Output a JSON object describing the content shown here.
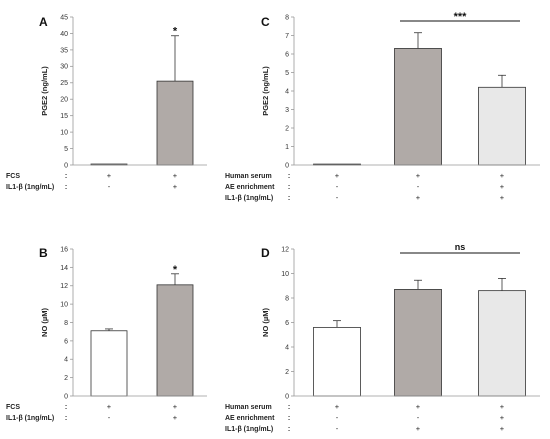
{
  "chart_data": [
    {
      "panel": "A",
      "type": "bar",
      "ylabel": "PGE2 (ng/mL)",
      "ylim": [
        0,
        45
      ],
      "yticks": [
        0,
        5,
        10,
        15,
        20,
        25,
        30,
        35,
        40,
        45
      ],
      "values": [
        0.3,
        25.5
      ],
      "errors": [
        0,
        13.8
      ],
      "fills": [
        "#ffffff",
        "#b0aaa7"
      ],
      "conditions": [
        {
          "label": "FCS",
          "sep": ":",
          "signs": [
            "+",
            "+"
          ]
        },
        {
          "label": "IL1-β (1ng/mL)",
          "sep": ":",
          "signs": [
            "-",
            "+"
          ]
        }
      ],
      "annotations": [
        {
          "bar": 1,
          "text": "*"
        }
      ]
    },
    {
      "panel": "B",
      "type": "bar",
      "ylabel": "NO (µM)",
      "ylim": [
        0,
        16
      ],
      "yticks": [
        0,
        2,
        4,
        6,
        8,
        10,
        12,
        14,
        16
      ],
      "values": [
        7.1,
        12.1
      ],
      "errors": [
        0.2,
        1.2
      ],
      "fills": [
        "#ffffff",
        "#b0aaa7"
      ],
      "conditions": [
        {
          "label": "FCS",
          "sep": ":",
          "signs": [
            "+",
            "+"
          ]
        },
        {
          "label": "IL1-β (1ng/mL)",
          "sep": ":",
          "signs": [
            "-",
            "+"
          ]
        }
      ],
      "annotations": [
        {
          "bar": 1,
          "text": "*"
        }
      ]
    },
    {
      "panel": "C",
      "type": "bar",
      "ylabel": "PGE2 (ng/mL)",
      "ylim": [
        0,
        8
      ],
      "yticks": [
        0,
        1,
        2,
        3,
        4,
        5,
        6,
        7,
        8
      ],
      "values": [
        0.05,
        6.3,
        4.2
      ],
      "errors": [
        0,
        0.85,
        0.65
      ],
      "fills": [
        "#ffffff",
        "#b0aaa7",
        "#e8e8e8"
      ],
      "conditions": [
        {
          "label": "Human serum",
          "sep": ":",
          "signs": [
            "+",
            "+",
            "+"
          ]
        },
        {
          "label": "AE enrichment",
          "sep": ":",
          "signs": [
            "-",
            "-",
            "+"
          ]
        },
        {
          "label": "IL1-β (1ng/mL)",
          "sep": ":",
          "signs": [
            "-",
            "+",
            "+"
          ]
        }
      ],
      "brackets": [
        {
          "from": 1,
          "to": 2,
          "text": "***"
        }
      ]
    },
    {
      "panel": "D",
      "type": "bar",
      "ylabel": "NO (µM)",
      "ylim": [
        0,
        12
      ],
      "yticks": [
        0,
        2,
        4,
        6,
        8,
        10,
        12
      ],
      "values": [
        5.6,
        8.7,
        8.6
      ],
      "errors": [
        0.55,
        0.75,
        1.0
      ],
      "fills": [
        "#ffffff",
        "#b0aaa7",
        "#e8e8e8"
      ],
      "conditions": [
        {
          "label": "Human serum",
          "sep": ":",
          "signs": [
            "+",
            "+",
            "+"
          ]
        },
        {
          "label": "AE enrichment",
          "sep": ":",
          "signs": [
            "-",
            "-",
            "+"
          ]
        },
        {
          "label": "IL1-β (1ng/mL)",
          "sep": ":",
          "signs": [
            "-",
            "+",
            "+"
          ]
        }
      ],
      "brackets": [
        {
          "from": 1,
          "to": 2,
          "text": "ns"
        }
      ]
    }
  ]
}
